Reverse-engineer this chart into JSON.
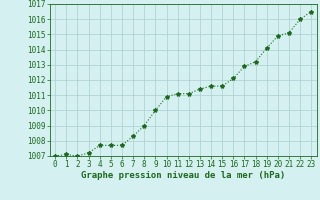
{
  "x": [
    0,
    1,
    2,
    3,
    4,
    5,
    6,
    7,
    8,
    9,
    10,
    11,
    12,
    13,
    14,
    15,
    16,
    17,
    18,
    19,
    20,
    21,
    22,
    23
  ],
  "y": [
    1007.0,
    1007.1,
    1007.0,
    1007.2,
    1007.7,
    1007.7,
    1007.7,
    1008.3,
    1009.0,
    1010.0,
    1010.9,
    1011.1,
    1011.1,
    1011.4,
    1011.6,
    1011.6,
    1012.1,
    1012.9,
    1013.2,
    1014.1,
    1014.9,
    1015.1,
    1016.0,
    1016.5
  ],
  "line_color": "#1a6b1a",
  "marker": "*",
  "bg_color": "#d4f0f0",
  "grid_color": "#aacece",
  "xlabel": "Graphe pression niveau de la mer (hPa)",
  "xlabel_color": "#1a6b1a",
  "tick_color": "#1a6b1a",
  "ylim": [
    1007,
    1017
  ],
  "xlim_min": -0.5,
  "xlim_max": 23.5,
  "yticks": [
    1007,
    1008,
    1009,
    1010,
    1011,
    1012,
    1013,
    1014,
    1015,
    1016,
    1017
  ],
  "xticks": [
    0,
    1,
    2,
    3,
    4,
    5,
    6,
    7,
    8,
    9,
    10,
    11,
    12,
    13,
    14,
    15,
    16,
    17,
    18,
    19,
    20,
    21,
    22,
    23
  ],
  "linewidth": 0.8,
  "markersize": 3.0,
  "tick_fontsize": 5.5,
  "xlabel_fontsize": 6.5
}
